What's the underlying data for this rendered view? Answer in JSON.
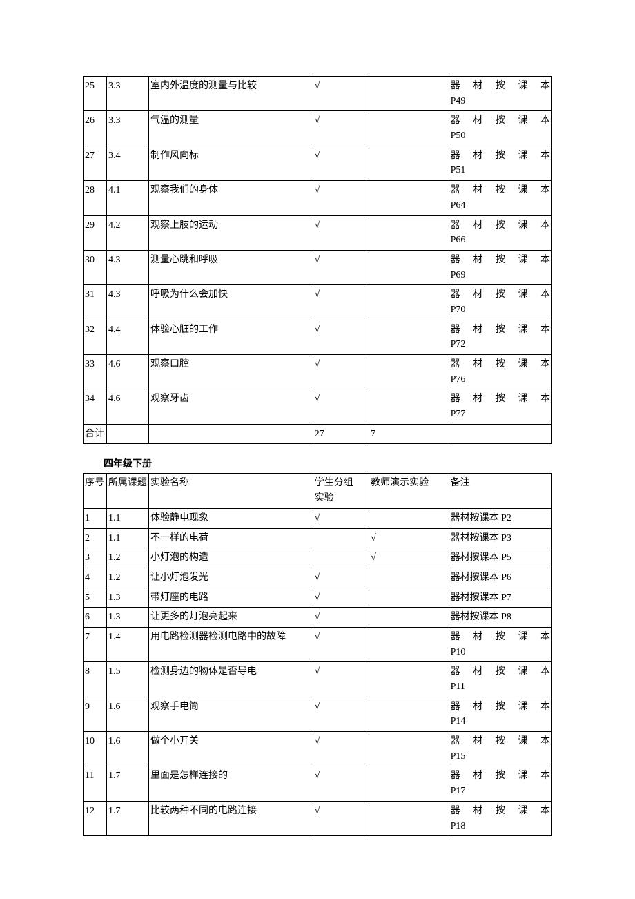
{
  "table1": {
    "columns": {
      "seq_width": "5%",
      "topic_width": "9%",
      "name_width": "35%",
      "student_width": "12%",
      "teacher_width": "17%",
      "notes_width": "22%"
    },
    "rows": [
      {
        "seq": "25",
        "topic": "3.3",
        "name": "室内外温度的测量与比较",
        "student": "√",
        "teacher": "",
        "notes_prefix": "器材按课本",
        "notes_suffix": "P49"
      },
      {
        "seq": "26",
        "topic": "3.3",
        "name": "气温的测量",
        "student": "√",
        "teacher": "",
        "notes_prefix": "器材按课本",
        "notes_suffix": "P50"
      },
      {
        "seq": "27",
        "topic": "3.4",
        "name": "制作风向标",
        "student": "√",
        "teacher": "",
        "notes_prefix": "器材按课本",
        "notes_suffix": "P51"
      },
      {
        "seq": "28",
        "topic": "4.1",
        "name": "观察我们的身体",
        "student": "√",
        "teacher": "",
        "notes_prefix": "器材按课本",
        "notes_suffix": "P64"
      },
      {
        "seq": "29",
        "topic": "4.2",
        "name": "观察上肢的运动",
        "student": "√",
        "teacher": "",
        "notes_prefix": "器材按课本",
        "notes_suffix": "P66"
      },
      {
        "seq": "30",
        "topic": "4.3",
        "name": "测量心跳和呼吸",
        "student": "√",
        "teacher": "",
        "notes_prefix": "器材按课本",
        "notes_suffix": "P69"
      },
      {
        "seq": "31",
        "topic": "4.3",
        "name": "呼吸为什么会加快",
        "student": "√",
        "teacher": "",
        "notes_prefix": "器材按课本",
        "notes_suffix": "P70"
      },
      {
        "seq": "32",
        "topic": "4.4",
        "name": "体验心脏的工作",
        "student": "√",
        "teacher": "",
        "notes_prefix": "器材按课本",
        "notes_suffix": "P72"
      },
      {
        "seq": "33",
        "topic": "4.6",
        "name": "观察口腔",
        "student": "√",
        "teacher": "",
        "notes_prefix": "器材按课本",
        "notes_suffix": "P76"
      },
      {
        "seq": "34",
        "topic": "4.6",
        "name": "观察牙齿",
        "student": "√",
        "teacher": "",
        "notes_prefix": "器材按课本",
        "notes_suffix": "P77"
      }
    ],
    "total": {
      "label": "合计",
      "student": "27",
      "teacher": "7"
    }
  },
  "section2_title": "四年级下册",
  "table2": {
    "headers": {
      "seq": "序号",
      "topic": "所属课题",
      "name": "实验名称",
      "student_line1": "学生分组",
      "student_line2": "实验",
      "teacher": "教师演示实验",
      "notes": "备注"
    },
    "rows": [
      {
        "seq": "1",
        "topic": "1.1",
        "name": "体验静电现象",
        "student": "√",
        "teacher": "",
        "notes": "器材按课本 P2",
        "twoLine": false
      },
      {
        "seq": "2",
        "topic": "1.1",
        "name": "不一样的电荷",
        "student": "",
        "teacher": "√",
        "notes": "器材按课本 P3",
        "twoLine": false
      },
      {
        "seq": "3",
        "topic": "1.2",
        "name": "小灯泡的构造",
        "student": "",
        "teacher": "√",
        "notes": "器材按课本 P5",
        "twoLine": false
      },
      {
        "seq": "4",
        "topic": "1.2",
        "name": "让小灯泡发光",
        "student": "√",
        "teacher": "",
        "notes": "器材按课本 P6",
        "twoLine": false
      },
      {
        "seq": "5",
        "topic": "1.3",
        "name": "带灯座的电路",
        "student": "√",
        "teacher": "",
        "notes": "器材按课本 P7",
        "twoLine": false
      },
      {
        "seq": "6",
        "topic": "1.3",
        "name": "让更多的灯泡亮起来",
        "student": "√",
        "teacher": "",
        "notes": "器材按课本 P8",
        "twoLine": false
      },
      {
        "seq": "7",
        "topic": "1.4",
        "name": "用电路检测器检测电路中的故障",
        "student": "√",
        "teacher": "",
        "notes_prefix": "器材按课本",
        "notes_suffix": "P10",
        "twoLine": true
      },
      {
        "seq": "8",
        "topic": "1.5",
        "name": "检测身边的物体是否导电",
        "student": "√",
        "teacher": "",
        "notes_prefix": "器材按课本",
        "notes_suffix": "P11",
        "twoLine": true
      },
      {
        "seq": "9",
        "topic": "1.6",
        "name": "观察手电筒",
        "student": "√",
        "teacher": "",
        "notes_prefix": "器材按课本",
        "notes_suffix": "P14",
        "twoLine": true
      },
      {
        "seq": "10",
        "topic": "1.6",
        "name": "做个小开关",
        "student": "√",
        "teacher": "",
        "notes_prefix": "器材按课本",
        "notes_suffix": "P15",
        "twoLine": true
      },
      {
        "seq": "11",
        "topic": "1.7",
        "name": "里面是怎样连接的",
        "student": "√",
        "teacher": "",
        "notes_prefix": "器材按课本",
        "notes_suffix": "P17",
        "twoLine": true
      },
      {
        "seq": "12",
        "topic": "1.7",
        "name": "比较两种不同的电路连接",
        "student": "√",
        "teacher": "",
        "notes_prefix": "器材按课本",
        "notes_suffix": "P18",
        "twoLine": true
      }
    ]
  },
  "styling": {
    "background_color": "#ffffff",
    "border_color": "#000000",
    "font_family": "SimSun",
    "font_size": 14,
    "cell_line_height": 1.55
  }
}
